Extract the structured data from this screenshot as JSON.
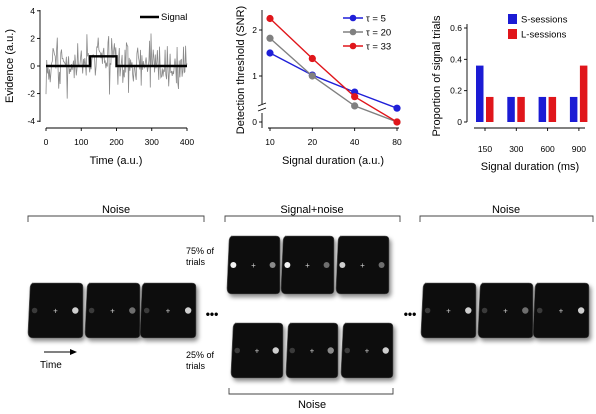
{
  "chart_data": [
    {
      "type": "line",
      "xlabel": "Time (a.u.)",
      "ylabel": "Evidence (a.u.)",
      "xticks": [
        0,
        100,
        200,
        300,
        400
      ],
      "yticks": [
        -4,
        -2,
        0,
        2,
        4
      ],
      "xlim": [
        0,
        400
      ],
      "ylim": [
        -4,
        4
      ],
      "series": [
        {
          "name": "Signal",
          "x": [
            0,
            125,
            125,
            200,
            200,
            400
          ],
          "y": [
            0,
            0,
            0.7,
            0.7,
            0,
            0
          ]
        }
      ],
      "noise_trace": "grey noisy evidence trace around the signal",
      "colors": {
        "signal": "#000000",
        "noise": "#8a8a8a"
      }
    },
    {
      "type": "line",
      "xlabel": "Signal duration (a.u.)",
      "ylabel": "Detection threshold (SNR)",
      "xticks": [
        "10",
        "20",
        "40",
        "80"
      ],
      "yticks": [
        "0",
        "1",
        "2"
      ],
      "x": [
        10,
        20,
        40,
        80
      ],
      "series": [
        {
          "name": "τ = 5",
          "values": [
            1.5,
            1.02,
            0.65,
            0.3
          ],
          "color": "#1f1fd8"
        },
        {
          "name": "τ = 20",
          "values": [
            1.82,
            1.0,
            0.35,
            0.0
          ],
          "color": "#808080"
        },
        {
          "name": "τ = 33",
          "values": [
            2.25,
            1.38,
            0.55,
            0.0
          ],
          "color": "#e0161b"
        }
      ],
      "legend_position": "top-right"
    },
    {
      "type": "bar",
      "xlabel": "Signal duration (ms)",
      "ylabel": "Proportion of signal trials",
      "categories": [
        "150",
        "300",
        "600",
        "900"
      ],
      "yticks": [
        "0",
        "0.2",
        "0.4",
        "0.6"
      ],
      "ylim": [
        0,
        0.6
      ],
      "series": [
        {
          "name": "S-sessions",
          "values": [
            0.36,
            0.16,
            0.16,
            0.16
          ],
          "color": "#1b1bd4"
        },
        {
          "name": "L-sessions",
          "values": [
            0.16,
            0.16,
            0.16,
            0.36
          ],
          "color": "#e0161b"
        }
      ],
      "legend_position": "top-right"
    }
  ],
  "diagram": {
    "segments": {
      "noise_left": "Noise",
      "signal_noise": "Signal+noise",
      "noise_right": "Noise",
      "noise_bottom": "Noise"
    },
    "pct_75_line1": "75% of",
    "pct_75_line2": "trials",
    "pct_25_line1": "25% of",
    "pct_25_line2": "trials",
    "ellipsis": "•••",
    "time_label": "Time"
  }
}
